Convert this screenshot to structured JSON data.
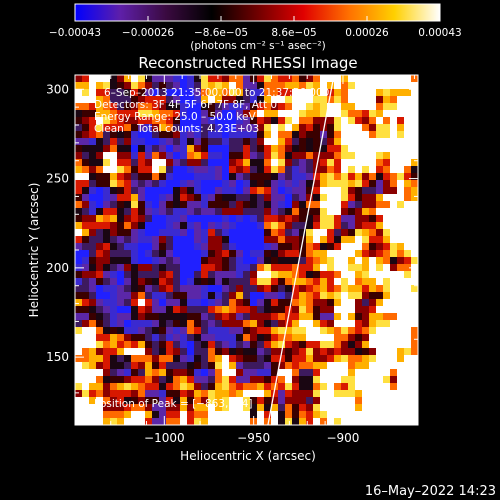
{
  "chart_data": {
    "type": "heatmap",
    "title": "Reconstructed RHESSI Image",
    "xlabel": "Heliocentric X (arcsec)",
    "ylabel": "Heliocentric Y (arcsec)",
    "xlim": [
      -1050,
      -858
    ],
    "ylim": [
      112,
      308
    ],
    "x_ticks": [
      {
        "value": -1000,
        "label": "−1000"
      },
      {
        "value": -950,
        "label": "−950"
      },
      {
        "value": -900,
        "label": "−900"
      }
    ],
    "y_ticks": [
      {
        "value": 150,
        "label": "150"
      },
      {
        "value": 200,
        "label": "200"
      },
      {
        "value": 250,
        "label": "250"
      },
      {
        "value": 300,
        "label": "300"
      }
    ],
    "colorbar": {
      "range": [
        -0.00043,
        0.00043
      ],
      "tick_labels": [
        "−0.00043",
        "−0.00026",
        "−8.6e−05",
        "8.6e−05",
        "0.00026",
        "0.00043"
      ],
      "unit_label": "(photons cm⁻² s⁻¹ asec⁻²)",
      "colors": [
        "#0000ff",
        "#5e1fa8",
        "#3a0a40",
        "#000000",
        "#700000",
        "#e00000",
        "#ff7000",
        "#ffd000",
        "#ffffff"
      ]
    },
    "annotations": [
      "6–Sep–2013 21:35:00.000 to 21:37:56.000",
      "Detectors: 3F 4F 5F 6F 7F 8F, Att 0",
      "Energy Range: 25.0 – 50.0 keV",
      "Clean    Total counts: 4.23E+03"
    ],
    "peak_label": "Position of Peak = [−863,224]",
    "peak": [
      -863,
      224
    ],
    "limb_line": [
      [
        -942,
        112
      ],
      [
        -905,
        308
      ]
    ],
    "timestamp": "16–May–2022 14:23"
  }
}
